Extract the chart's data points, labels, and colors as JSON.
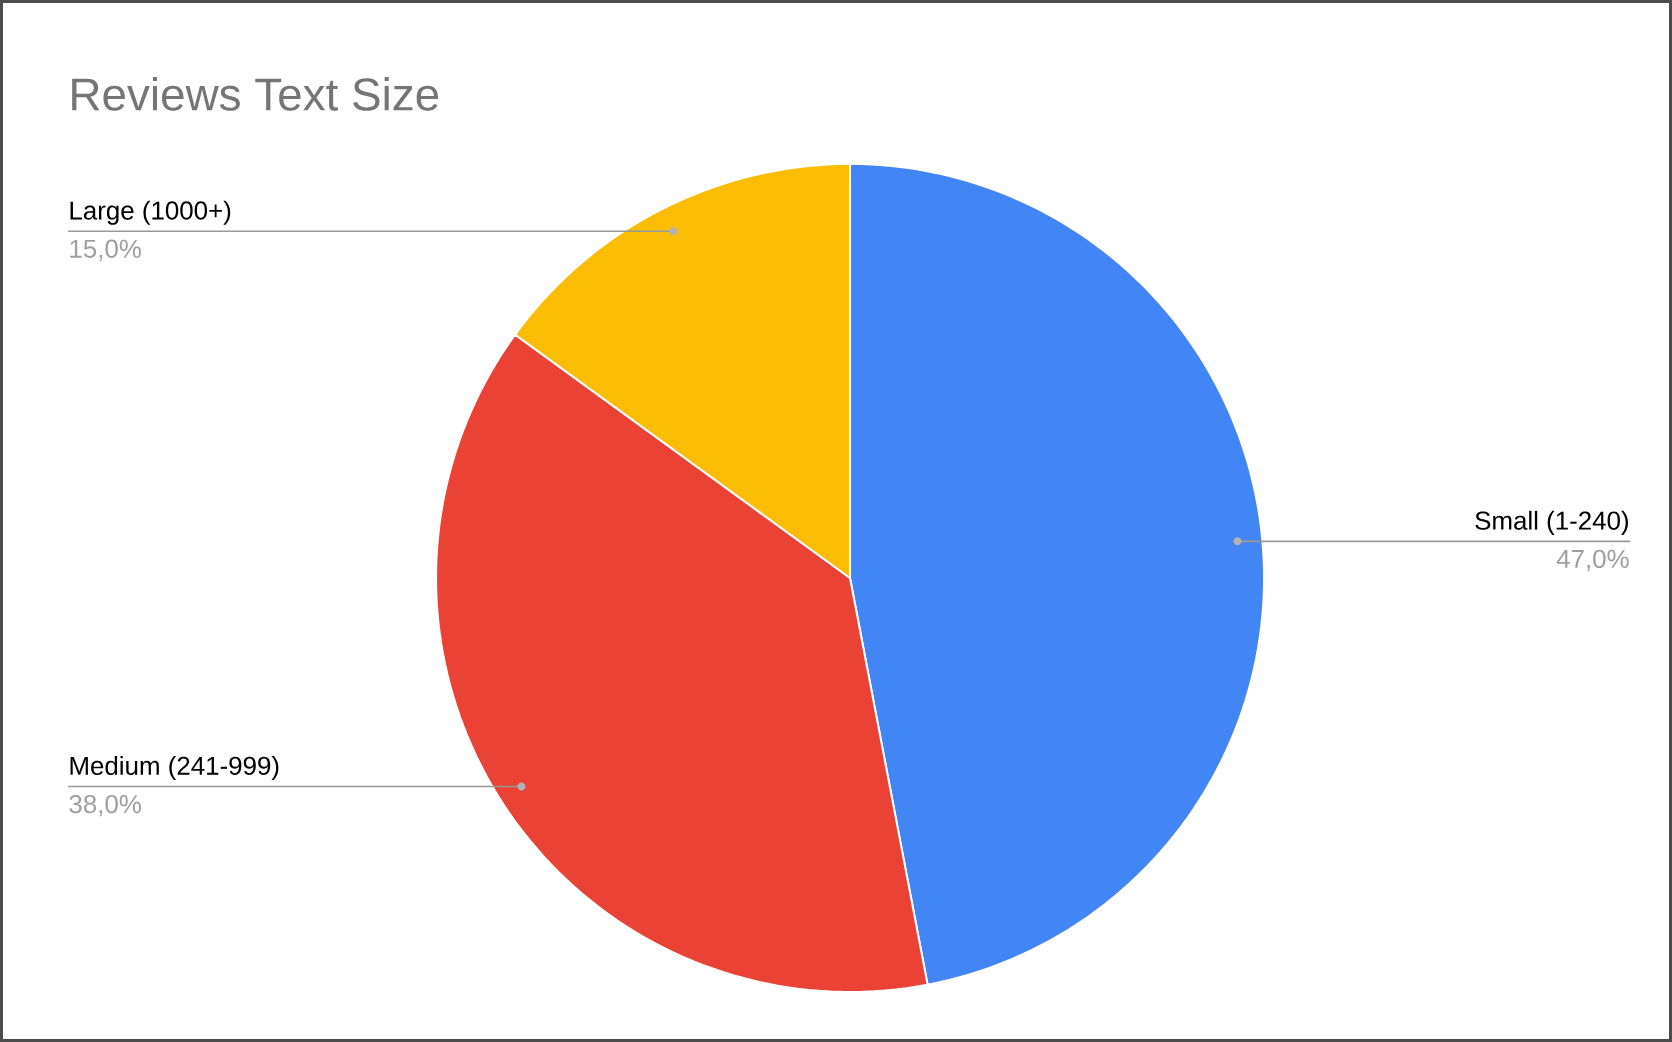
{
  "chart_data": {
    "type": "pie",
    "title": "Reviews Text Size",
    "categories": [
      "Small (1-240)",
      "Medium (241-999)",
      "Large (1000+)"
    ],
    "values": [
      47,
      38,
      15
    ],
    "colors": [
      "#4285f4",
      "#ea4335",
      "#fbbc04"
    ],
    "value_labels": [
      "47,0%",
      "38,0%",
      "15,0%"
    ]
  }
}
